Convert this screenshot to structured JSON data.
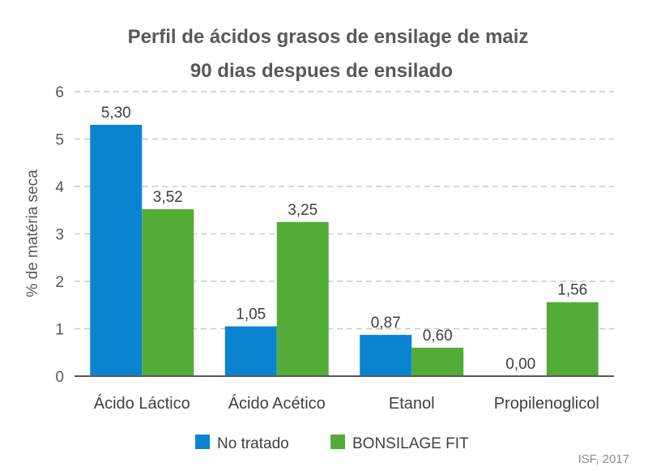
{
  "chart_data": {
    "type": "bar",
    "title": [
      "Perfil de ácidos grasos de ensilage de maiz",
      "90 dias despues de ensilado"
    ],
    "xlabel": "",
    "ylabel": "% de matéria seca",
    "ylim": [
      0,
      6
    ],
    "yticks": [
      "0",
      "1",
      "2",
      "3",
      "4",
      "5",
      "6"
    ],
    "categories": [
      "Ácido Láctico",
      "Ácido Acético",
      "Etanol",
      "Propilenoglicol"
    ],
    "series": [
      {
        "name": "No tratado",
        "color": "#0a84d0",
        "values": [
          5.3,
          1.05,
          0.87,
          0.0
        ],
        "labels": [
          "5,30",
          "1,05",
          "0,87",
          "0,00"
        ]
      },
      {
        "name": "BONSILAGE FIT",
        "color": "#53ac38",
        "values": [
          3.52,
          3.25,
          0.6,
          1.56
        ],
        "labels": [
          "3,52",
          "3,25",
          "0,60",
          "1,56"
        ]
      }
    ],
    "grid": true,
    "legend": "bottom",
    "source": "ISF, 2017"
  }
}
